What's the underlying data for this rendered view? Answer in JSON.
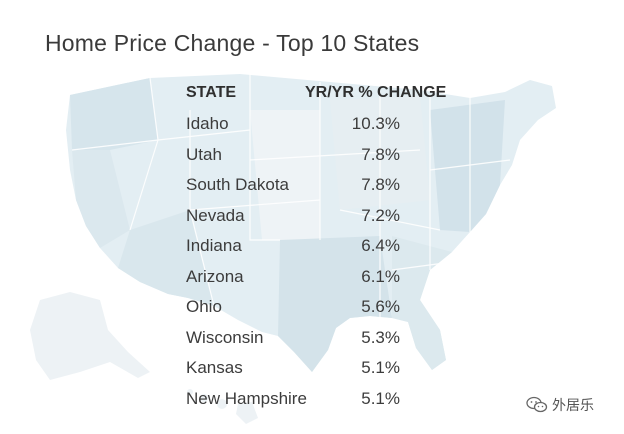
{
  "title": "Home Price Change - Top 10 States",
  "chart_data": {
    "type": "table",
    "title": "Home Price Change - Top 10 States",
    "columns": [
      "STATE",
      "YR/YR % CHANGE"
    ],
    "rows": [
      {
        "state": "Idaho",
        "change": "10.3%"
      },
      {
        "state": "Utah",
        "change": "7.8%"
      },
      {
        "state": "South Dakota",
        "change": "7.8%"
      },
      {
        "state": "Nevada",
        "change": "7.2%"
      },
      {
        "state": "Indiana",
        "change": "6.4%"
      },
      {
        "state": "Arizona",
        "change": "6.1%"
      },
      {
        "state": "Ohio",
        "change": "5.6%"
      },
      {
        "state": "Wisconsin",
        "change": "5.3%"
      },
      {
        "state": "Kansas",
        "change": "5.1%"
      },
      {
        "state": "New Hampshire",
        "change": "5.1%"
      }
    ],
    "background": "us-map",
    "map_colors": {
      "light": "#e3eef3",
      "mid": "#d4e4ec",
      "pale": "#edf2f5",
      "highlight": "#cfe6ef"
    }
  },
  "watermark": {
    "text": "外居乐",
    "icon": "wechat-icon"
  }
}
